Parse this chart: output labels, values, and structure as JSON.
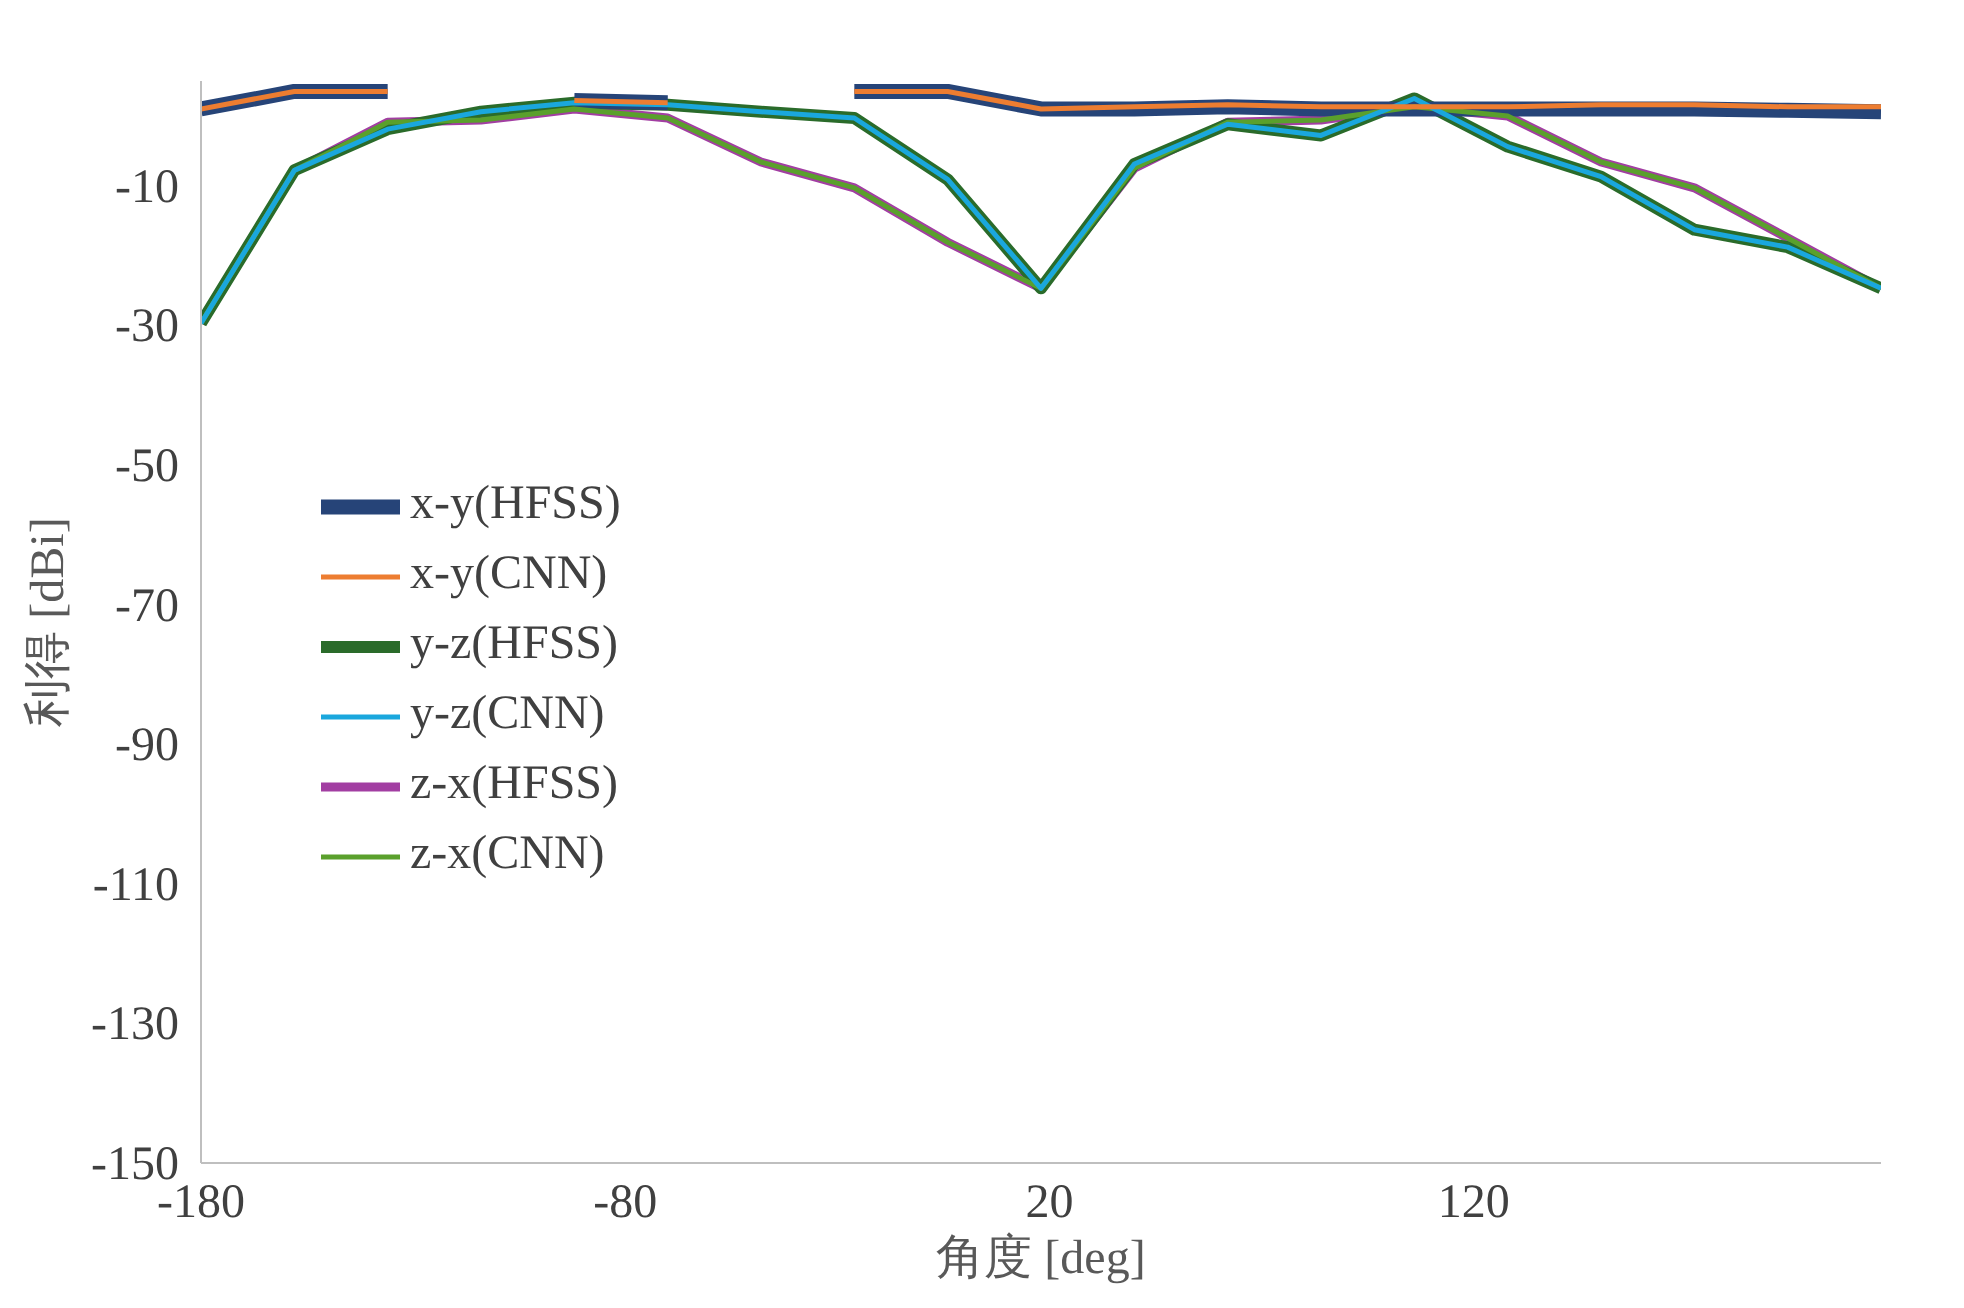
{
  "chart_data": {
    "type": "line",
    "xlabel": "角度 [deg]",
    "ylabel": "利得 [dBi]",
    "x": [
      -180,
      -158,
      -136,
      -114,
      -92,
      -70,
      -48,
      -26,
      -4,
      18,
      40,
      62,
      84,
      106,
      128,
      150,
      172,
      194,
      216
    ],
    "xlim": [
      -180,
      216
    ],
    "xticks": [
      -180,
      -80,
      20,
      120
    ],
    "ylim": [
      -150,
      5
    ],
    "yticks": [
      -150,
      -130,
      -110,
      -90,
      -70,
      -50,
      -30,
      -10
    ],
    "grid": false,
    "legend": "left",
    "marker": "none",
    "line_style": "solid",
    "series": [
      {
        "name": "x-y(HFSS)",
        "color": "#264478",
        "values": [
          1.0,
          3.5,
          3.5,
          null,
          2.2,
          1.9,
          null,
          3.5,
          3.5,
          1.0,
          1.0,
          1.3,
          1.0,
          1.0,
          1.0,
          1.0,
          1.0,
          0.8,
          0.6
        ]
      },
      {
        "name": "x-y(CNN)",
        "color": "#ed7d31",
        "values": [
          1.0,
          3.5,
          3.5,
          null,
          2.2,
          1.9,
          null,
          3.5,
          3.5,
          1.0,
          1.3,
          1.6,
          1.3,
          1.3,
          1.3,
          1.6,
          1.6,
          1.3,
          1.3
        ]
      },
      {
        "name": "y-z(HFSS)",
        "color": "#2a6b2a",
        "values": [
          -29.7,
          -7.8,
          -1.9,
          0.6,
          1.9,
          1.6,
          0.6,
          -0.3,
          -9.1,
          -24.7,
          -6.9,
          -1.2,
          -2.8,
          2.5,
          -4.4,
          -8.7,
          -16.3,
          -18.8,
          -24.7
        ]
      },
      {
        "name": "y-z(CNN)",
        "color": "#1aa7dd",
        "values": [
          -29.7,
          -7.8,
          -1.9,
          0.6,
          1.9,
          1.6,
          0.6,
          -0.3,
          -9.1,
          -24.7,
          -6.9,
          -1.2,
          -2.8,
          2.5,
          -4.4,
          -8.7,
          -16.3,
          -18.8,
          -24.7
        ]
      },
      {
        "name": "z-x(HFSS)",
        "color": "#a23ea2",
        "values": [
          -29.7,
          -7.8,
          -0.9,
          -0.6,
          1.0,
          -0.3,
          -6.6,
          -10.3,
          -18.1,
          -24.7,
          -7.5,
          -0.9,
          -0.6,
          1.3,
          0.0,
          -6.6,
          -10.3,
          -17.5,
          -24.7
        ]
      },
      {
        "name": "z-x(CNN)",
        "color": "#5aa02c",
        "values": [
          -29.7,
          -7.8,
          -0.9,
          -0.6,
          1.0,
          -0.3,
          -6.6,
          -10.3,
          -18.1,
          -24.7,
          -7.5,
          -0.9,
          -0.6,
          1.3,
          0.0,
          -6.6,
          -10.3,
          -17.5,
          -24.7
        ]
      }
    ]
  }
}
